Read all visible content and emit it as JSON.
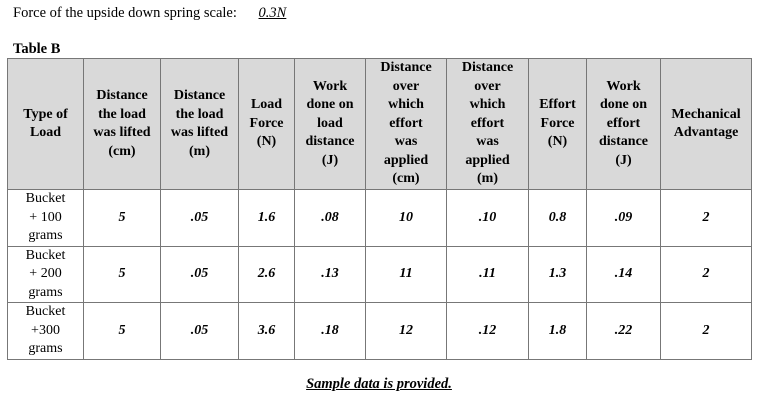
{
  "force_line": {
    "label": "Force of the upside down spring scale:",
    "value": "0.3N"
  },
  "table_title": "Table B",
  "headers": [
    "Type of\nLoad",
    "Distance\nthe load\nwas lifted\n(cm)",
    "Distance\nthe load\nwas lifted\n(m)",
    "Load\nForce\n(N)",
    "Work\ndone on\nload\ndistance\n(J)",
    "Distance\nover\nwhich\neffort\nwas\napplied\n(cm)",
    "Distance\nover\nwhich\neffort\nwas\napplied\n(m)",
    "Effort\nForce\n(N)",
    "Work\ndone on\neffort\ndistance\n(J)",
    "Mechanical\nAdvantage"
  ],
  "rows": [
    {
      "type": "Bucket\n+ 100\ngrams",
      "values": [
        "5",
        ".05",
        "1.6",
        ".08",
        "10",
        ".10",
        "0.8",
        ".09",
        "2"
      ]
    },
    {
      "type": "Bucket\n+ 200\ngrams",
      "values": [
        "5",
        ".05",
        "2.6",
        ".13",
        "11",
        ".11",
        "1.3",
        ".14",
        "2"
      ]
    },
    {
      "type": "Bucket\n+300\ngrams",
      "values": [
        "5",
        ".05",
        "3.6",
        ".18",
        "12",
        ".12",
        "1.8",
        ".22",
        "2"
      ]
    }
  ],
  "footer_note": "Sample data is provided."
}
